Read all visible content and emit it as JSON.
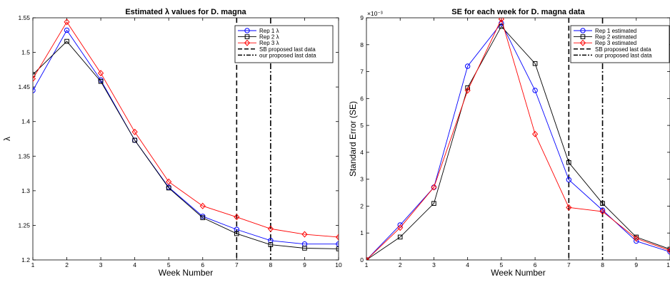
{
  "chart_data": [
    {
      "type": "line",
      "title": "Estimated λ values for D. magna",
      "xlabel": "Week Number",
      "ylabel": "λ",
      "xlim": [
        1,
        10
      ],
      "ylim": [
        1.2,
        1.55
      ],
      "xticks": [
        "1",
        "2",
        "3",
        "4",
        "5",
        "6",
        "7",
        "8",
        "9",
        "10"
      ],
      "yticks": [
        "1.2",
        "1.25",
        "1.3",
        "1.35",
        "1.4",
        "1.45",
        "1.5",
        "1.55"
      ],
      "y_tick_values": [
        1.2,
        1.25,
        1.3,
        1.35,
        1.4,
        1.45,
        1.5,
        1.55
      ],
      "exponent_label": "",
      "grid": false,
      "legend_position": "top-right",
      "x": [
        1,
        2,
        3,
        4,
        5,
        6,
        7,
        8,
        9,
        10
      ],
      "series": [
        {
          "name": "Rep 1 λ",
          "color": "#0000ff",
          "marker": "circle",
          "values": [
            1.445,
            1.532,
            1.46,
            1.373,
            1.305,
            1.263,
            1.244,
            1.228,
            1.223,
            1.223
          ]
        },
        {
          "name": "Rep 2 λ",
          "color": "#000000",
          "marker": "square",
          "values": [
            1.468,
            1.516,
            1.458,
            1.373,
            1.304,
            1.261,
            1.238,
            1.222,
            1.217,
            1.216
          ]
        },
        {
          "name": "Rep 3 λ",
          "color": "#ff0000",
          "marker": "diamond",
          "values": [
            1.462,
            1.544,
            1.47,
            1.385,
            1.313,
            1.278,
            1.262,
            1.245,
            1.237,
            1.233
          ]
        }
      ],
      "vlines": [
        {
          "name": "SB proposed last data",
          "x": 7,
          "style": "dashed"
        },
        {
          "name": "our proposed last data",
          "x": 8,
          "style": "dashdot"
        }
      ]
    },
    {
      "type": "line",
      "title": "SE for each week for D. magna data",
      "xlabel": "Week Number",
      "ylabel": "Standard Error (SE)",
      "xlim": [
        1,
        10
      ],
      "ylim": [
        0,
        0.009
      ],
      "xticks": [
        "1",
        "2",
        "3",
        "4",
        "5",
        "6",
        "7",
        "8",
        "9",
        "10"
      ],
      "yticks": [
        "0",
        "1",
        "2",
        "3",
        "4",
        "5",
        "6",
        "7",
        "8",
        "9"
      ],
      "y_tick_values": [
        0,
        0.001,
        0.002,
        0.003,
        0.004,
        0.005,
        0.006,
        0.007,
        0.008,
        0.009
      ],
      "exponent_label": "×10⁻³",
      "grid": false,
      "legend_position": "top-right",
      "x": [
        1,
        2,
        3,
        4,
        5,
        6,
        7,
        8,
        9,
        10
      ],
      "series": [
        {
          "name": "Rep 1 estimated",
          "color": "#0000ff",
          "marker": "circle",
          "values": [
            0.0,
            0.0013,
            0.0027,
            0.0072,
            0.0088,
            0.0063,
            0.00298,
            0.00185,
            0.0007,
            0.0003
          ]
        },
        {
          "name": "Rep 2 estimated",
          "color": "#000000",
          "marker": "square",
          "values": [
            0.0,
            0.00085,
            0.0021,
            0.0064,
            0.00868,
            0.0073,
            0.00362,
            0.0021,
            0.00085,
            0.0004
          ]
        },
        {
          "name": "Rep 3 estimated",
          "color": "#ff0000",
          "marker": "diamond",
          "values": [
            0.0,
            0.0012,
            0.0027,
            0.0063,
            0.00895,
            0.00468,
            0.00195,
            0.0018,
            0.0008,
            0.00035
          ]
        }
      ],
      "vlines": [
        {
          "name": "SB proposed last data",
          "x": 7,
          "style": "dashed"
        },
        {
          "name": "our proposed last data",
          "x": 8,
          "style": "dashdot"
        }
      ]
    }
  ]
}
